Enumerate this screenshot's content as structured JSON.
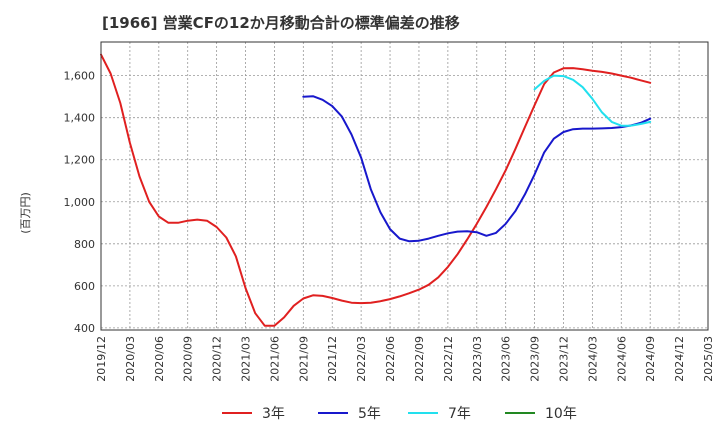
{
  "chart_data": {
    "type": "line",
    "title": "[1966]  営業CFの12か月移動合計の標準偏差の推移",
    "ylabel": "(百万円)",
    "xlabel": "",
    "x_ticks": [
      "2019/12",
      "2020/03",
      "2020/06",
      "2020/09",
      "2020/12",
      "2021/03",
      "2021/06",
      "2021/09",
      "2021/12",
      "2022/03",
      "2022/06",
      "2022/09",
      "2022/12",
      "2023/03",
      "2023/06",
      "2023/09",
      "2023/12",
      "2024/03",
      "2024/06",
      "2024/09",
      "2024/12",
      "2025/03"
    ],
    "y_ticks": [
      "400",
      "600",
      "800",
      "1,000",
      "1,200",
      "1,400",
      "1,600"
    ],
    "ylim": [
      390,
      1760
    ],
    "grid": true,
    "legend_position": "bottom",
    "series": [
      {
        "name": "3年",
        "color": "#e02020",
        "x": [
          "2019/12",
          "2020/01",
          "2020/02",
          "2020/03",
          "2020/04",
          "2020/05",
          "2020/06",
          "2020/07",
          "2020/08",
          "2020/09",
          "2020/10",
          "2020/11",
          "2020/12",
          "2021/01",
          "2021/02",
          "2021/03",
          "2021/04",
          "2021/05",
          "2021/06",
          "2021/07",
          "2021/08",
          "2021/09",
          "2021/10",
          "2021/11",
          "2021/12",
          "2022/01",
          "2022/02",
          "2022/03",
          "2022/04",
          "2022/05",
          "2022/06",
          "2022/07",
          "2022/08",
          "2022/09",
          "2022/10",
          "2022/11",
          "2022/12",
          "2023/01",
          "2023/02",
          "2023/03",
          "2023/04",
          "2023/05",
          "2023/06",
          "2023/07",
          "2023/08",
          "2023/09",
          "2023/10",
          "2023/11",
          "2023/12",
          "2024/01",
          "2024/02",
          "2024/03",
          "2024/04",
          "2024/05",
          "2024/06",
          "2024/07",
          "2024/08",
          "2024/09"
        ],
        "values": [
          1700,
          1610,
          1470,
          1280,
          1120,
          1000,
          930,
          900,
          900,
          910,
          915,
          910,
          880,
          830,
          740,
          590,
          470,
          410,
          410,
          450,
          505,
          540,
          555,
          552,
          542,
          530,
          520,
          518,
          520,
          527,
          537,
          550,
          565,
          582,
          605,
          640,
          690,
          750,
          820,
          895,
          975,
          1060,
          1150,
          1250,
          1355,
          1460,
          1560,
          1615,
          1635,
          1636,
          1630,
          1623,
          1618,
          1610,
          1600,
          1590,
          1578,
          1566
        ]
      },
      {
        "name": "5年",
        "color": "#1818cc",
        "x": [
          "2021/09",
          "2021/10",
          "2021/11",
          "2021/12",
          "2022/01",
          "2022/02",
          "2022/03",
          "2022/04",
          "2022/05",
          "2022/06",
          "2022/07",
          "2022/08",
          "2022/09",
          "2022/10",
          "2022/11",
          "2022/12",
          "2023/01",
          "2023/02",
          "2023/03",
          "2023/04",
          "2023/05",
          "2023/06",
          "2023/07",
          "2023/08",
          "2023/09",
          "2023/10",
          "2023/11",
          "2023/12",
          "2024/01",
          "2024/02",
          "2024/03",
          "2024/04",
          "2024/05",
          "2024/06",
          "2024/07",
          "2024/08",
          "2024/09"
        ],
        "values": [
          1500,
          1502,
          1485,
          1455,
          1405,
          1320,
          1210,
          1060,
          950,
          870,
          825,
          812,
          815,
          825,
          838,
          850,
          858,
          860,
          855,
          838,
          852,
          895,
          955,
          1035,
          1130,
          1235,
          1300,
          1332,
          1345,
          1348,
          1348,
          1349,
          1351,
          1355,
          1363,
          1375,
          1395
        ]
      },
      {
        "name": "7年",
        "color": "#22e0ee",
        "x": [
          "2023/09",
          "2023/10",
          "2023/11",
          "2023/12",
          "2024/01",
          "2024/02",
          "2024/03",
          "2024/04",
          "2024/05",
          "2024/06",
          "2024/07",
          "2024/08",
          "2024/09"
        ],
        "values": [
          1535,
          1575,
          1600,
          1598,
          1580,
          1545,
          1490,
          1425,
          1380,
          1362,
          1362,
          1370,
          1380
        ]
      },
      {
        "name": "10年",
        "color": "#228822",
        "x": [],
        "values": []
      }
    ]
  }
}
